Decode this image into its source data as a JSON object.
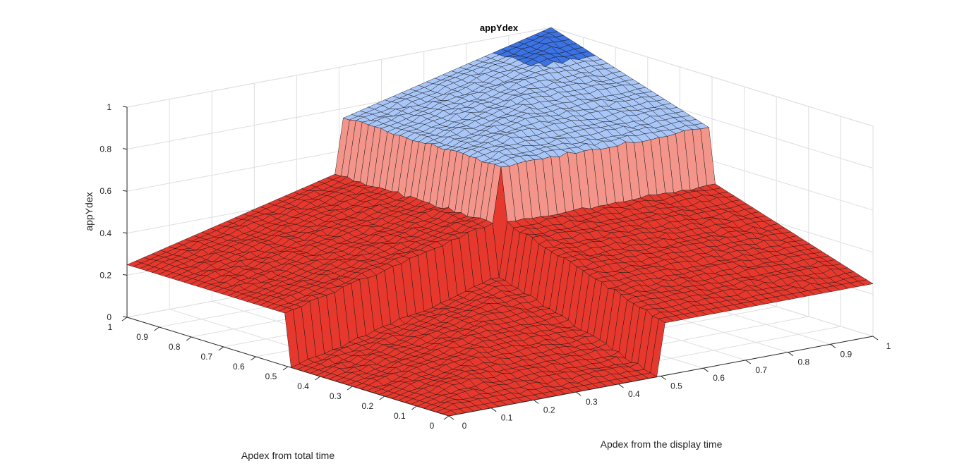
{
  "chart_data": {
    "type": "surface",
    "title": "appYdex",
    "xlabel": "Apdex from the display time",
    "ylabel": "Apdex from total time",
    "zlabel": "appYdex",
    "xlim": [
      0,
      1
    ],
    "ylim": [
      0,
      1
    ],
    "zlim": [
      0,
      1
    ],
    "x_ticks": [
      "0",
      "0.1",
      "0.2",
      "0.3",
      "0.4",
      "0.5",
      "0.6",
      "0.7",
      "0.8",
      "0.9",
      "1"
    ],
    "y_ticks": [
      "0",
      "0.1",
      "0.2",
      "0.3",
      "0.4",
      "0.5",
      "0.6",
      "0.7",
      "0.8",
      "0.9",
      "1"
    ],
    "z_ticks": [
      "0",
      "0.2",
      "0.4",
      "0.6",
      "0.8",
      "1"
    ],
    "grid": true,
    "grid_resolution": 51,
    "surface_model": "z = min(x, y) / 2 + (x >= 0.5 ? 0.25 : 0) + (y >= 0.5 ? 0.25 : 0)",
    "sample_points": [
      {
        "x": 0,
        "y": 0,
        "z": 0
      },
      {
        "x": 1,
        "y": 0,
        "z": 0.25
      },
      {
        "x": 0,
        "y": 1,
        "z": 0.25
      },
      {
        "x": 0.5,
        "y": 0.5,
        "z": 0.75
      },
      {
        "x": 1,
        "y": 1,
        "z": 1
      },
      {
        "x": 1,
        "y": 0.5,
        "z": 0.75
      },
      {
        "x": 0.5,
        "y": 1,
        "z": 0.75
      }
    ],
    "color_bands": [
      {
        "range": [
          0,
          0.5
        ],
        "color": "#e7382d"
      },
      {
        "range": [
          0.5,
          0.75
        ],
        "color": "#f4958b"
      },
      {
        "range": [
          0.75,
          1
        ],
        "color": "#a9c6f8"
      }
    ],
    "peak_color": "#3b72e4"
  }
}
